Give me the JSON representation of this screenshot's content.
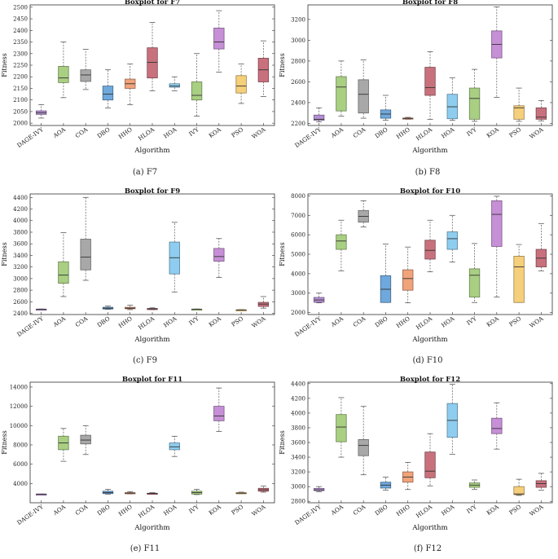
{
  "chart_data": [
    {
      "type": "boxplot",
      "title": "Boxplot for F7",
      "caption": "(a) F7",
      "xlabel": "Algorithm",
      "ylabel": "Fitness",
      "ylim": [
        1990,
        2510
      ],
      "yticks": [
        2000,
        2050,
        2100,
        2150,
        2200,
        2250,
        2300,
        2350,
        2400,
        2450,
        2500
      ],
      "series": [
        {
          "name": "DAGE-IVY",
          "color": "#b58fd4",
          "stats": [
            2022,
            2038,
            2045,
            2053,
            2080
          ]
        },
        {
          "name": "AOA",
          "color": "#a9cf82",
          "stats": [
            2110,
            2175,
            2195,
            2245,
            2350
          ]
        },
        {
          "name": "COA",
          "color": "#a8a8a8",
          "stats": [
            2145,
            2180,
            2208,
            2230,
            2318
          ]
        },
        {
          "name": "DBO",
          "color": "#6fa8dc",
          "stats": [
            2065,
            2100,
            2125,
            2160,
            2230
          ]
        },
        {
          "name": "HHO",
          "color": "#f1a37a",
          "stats": [
            2080,
            2150,
            2170,
            2190,
            2255
          ]
        },
        {
          "name": "HLOA",
          "color": "#c8717d",
          "stats": [
            2140,
            2195,
            2262,
            2325,
            2435
          ]
        },
        {
          "name": "HOA",
          "color": "#8ecdf0",
          "stats": [
            2140,
            2155,
            2160,
            2170,
            2200
          ]
        },
        {
          "name": "IVY",
          "color": "#a9cf82",
          "stats": [
            2030,
            2100,
            2120,
            2178,
            2300
          ]
        },
        {
          "name": "KOA",
          "color": "#c68fd6",
          "stats": [
            2220,
            2320,
            2350,
            2410,
            2485
          ]
        },
        {
          "name": "PSO",
          "color": "#f6cf7a",
          "stats": [
            2085,
            2130,
            2160,
            2205,
            2255
          ]
        },
        {
          "name": "WOA",
          "color": "#c8717d",
          "stats": [
            2115,
            2178,
            2230,
            2280,
            2355
          ]
        }
      ]
    },
    {
      "type": "boxplot",
      "title": "Boxplot for F8",
      "caption": "(b) F8",
      "xlabel": "Algorithm",
      "ylabel": "Fitness",
      "ylim": [
        2180,
        3340
      ],
      "yticks": [
        2200,
        2400,
        2600,
        2800,
        3000,
        3200
      ],
      "series": [
        {
          "name": "DAGE-IVY",
          "color": "#b58fd4",
          "stats": [
            2215,
            2230,
            2240,
            2280,
            2350
          ]
        },
        {
          "name": "AOA",
          "color": "#a9cf82",
          "stats": [
            2270,
            2320,
            2550,
            2650,
            2800
          ]
        },
        {
          "name": "COA",
          "color": "#a8a8a8",
          "stats": [
            2250,
            2300,
            2480,
            2620,
            2810
          ]
        },
        {
          "name": "DBO",
          "color": "#6fa8dc",
          "stats": [
            2230,
            2250,
            2290,
            2330,
            2470
          ]
        },
        {
          "name": "HHO",
          "color": "#f1a37a",
          "stats": [
            2240,
            2243,
            2248,
            2252,
            2258
          ]
        },
        {
          "name": "HLOA",
          "color": "#c8717d",
          "stats": [
            2240,
            2470,
            2545,
            2740,
            2890
          ]
        },
        {
          "name": "HOA",
          "color": "#8ecdf0",
          "stats": [
            2230,
            2245,
            2360,
            2480,
            2640
          ]
        },
        {
          "name": "IVY",
          "color": "#a9cf82",
          "stats": [
            2220,
            2240,
            2440,
            2540,
            2720
          ]
        },
        {
          "name": "KOA",
          "color": "#c68fd6",
          "stats": [
            2450,
            2830,
            2960,
            3090,
            3320
          ]
        },
        {
          "name": "PSO",
          "color": "#f6cf7a",
          "stats": [
            2220,
            2240,
            2350,
            2370,
            2540
          ]
        },
        {
          "name": "WOA",
          "color": "#c8717d",
          "stats": [
            2225,
            2240,
            2260,
            2350,
            2420
          ]
        }
      ]
    },
    {
      "type": "boxplot",
      "title": "Boxplot for F9",
      "caption": "(c) F9",
      "xlabel": "Algorithm",
      "ylabel": "Fitness",
      "ylim": [
        2380,
        4460
      ],
      "yticks": [
        2400,
        2600,
        2800,
        3000,
        3200,
        3400,
        3600,
        3800,
        4000,
        4200,
        4400
      ],
      "series": [
        {
          "name": "DAGE-IVY",
          "color": "#b58fd4",
          "stats": [
            2468,
            2470,
            2472,
            2474,
            2476
          ]
        },
        {
          "name": "AOA",
          "color": "#a9cf82",
          "stats": [
            2690,
            2920,
            3060,
            3290,
            3790
          ]
        },
        {
          "name": "COA",
          "color": "#a8a8a8",
          "stats": [
            2970,
            3150,
            3370,
            3680,
            4400
          ]
        },
        {
          "name": "DBO",
          "color": "#6fa8dc",
          "stats": [
            2470,
            2475,
            2490,
            2505,
            2525
          ]
        },
        {
          "name": "HHO",
          "color": "#f1a37a",
          "stats": [
            2465,
            2480,
            2490,
            2505,
            2540
          ]
        },
        {
          "name": "HLOA",
          "color": "#c8717d",
          "stats": [
            2465,
            2472,
            2478,
            2485,
            2495
          ]
        },
        {
          "name": "HOA",
          "color": "#8ecdf0",
          "stats": [
            2770,
            3080,
            3360,
            3630,
            3970
          ]
        },
        {
          "name": "IVY",
          "color": "#a9cf82",
          "stats": [
            2468,
            2470,
            2472,
            2474,
            2476
          ]
        },
        {
          "name": "KOA",
          "color": "#c68fd6",
          "stats": [
            3020,
            3300,
            3380,
            3520,
            3690
          ]
        },
        {
          "name": "PSO",
          "color": "#f6cf7a",
          "stats": [
            2456,
            2458,
            2460,
            2462,
            2465
          ]
        },
        {
          "name": "WOA",
          "color": "#c8717d",
          "stats": [
            2490,
            2520,
            2560,
            2590,
            2690
          ]
        }
      ]
    },
    {
      "type": "boxplot",
      "title": "Boxplot for F10",
      "caption": "(d) F10",
      "xlabel": "Algorithm",
      "ylabel": "Fitness",
      "ylim": [
        1900,
        8100
      ],
      "yticks": [
        2000,
        3000,
        4000,
        5000,
        6000,
        7000,
        8000
      ],
      "series": [
        {
          "name": "DAGE-IVY",
          "color": "#b58fd4",
          "stats": [
            2500,
            2530,
            2650,
            2780,
            3000
          ]
        },
        {
          "name": "AOA",
          "color": "#a9cf82",
          "stats": [
            4150,
            5250,
            5680,
            6000,
            6750
          ]
        },
        {
          "name": "COA",
          "color": "#a8a8a8",
          "stats": [
            6400,
            6650,
            6950,
            7250,
            7750
          ]
        },
        {
          "name": "DBO",
          "color": "#6fa8dc",
          "stats": [
            2520,
            2520,
            3200,
            3900,
            5520
          ]
        },
        {
          "name": "HHO",
          "color": "#f1a37a",
          "stats": [
            2500,
            3150,
            3750,
            4200,
            5370
          ]
        },
        {
          "name": "HLOA",
          "color": "#c8717d",
          "stats": [
            4100,
            4750,
            5200,
            5720,
            6750
          ]
        },
        {
          "name": "HOA",
          "color": "#8ecdf0",
          "stats": [
            4600,
            5250,
            5800,
            6150,
            7000
          ]
        },
        {
          "name": "IVY",
          "color": "#a9cf82",
          "stats": [
            2520,
            2800,
            3920,
            4250,
            5550
          ]
        },
        {
          "name": "KOA",
          "color": "#c68fd6",
          "stats": [
            2800,
            5400,
            7050,
            7750,
            7980
          ]
        },
        {
          "name": "PSO",
          "color": "#f6cf7a",
          "stats": [
            2520,
            2520,
            4350,
            4900,
            5500
          ]
        },
        {
          "name": "WOA",
          "color": "#c8717d",
          "stats": [
            4150,
            4350,
            4800,
            5250,
            6580
          ]
        }
      ]
    },
    {
      "type": "boxplot",
      "title": "Boxplot for F11",
      "caption": "(e) F11",
      "xlabel": "Algorithm",
      "ylabel": "Fitness",
      "ylim": [
        2000,
        14500
      ],
      "yticks": [
        4000,
        6000,
        8000,
        10000,
        12000,
        14000
      ],
      "series": [
        {
          "name": "DAGE-IVY",
          "color": "#b58fd4",
          "stats": [
            2880,
            2890,
            2900,
            2905,
            2910
          ]
        },
        {
          "name": "AOA",
          "color": "#a9cf82",
          "stats": [
            6300,
            7500,
            8200,
            8900,
            9700
          ]
        },
        {
          "name": "COA",
          "color": "#a8a8a8",
          "stats": [
            7000,
            8100,
            8500,
            9000,
            10000
          ]
        },
        {
          "name": "DBO",
          "color": "#6fa8dc",
          "stats": [
            2900,
            2950,
            3050,
            3200,
            3400
          ]
        },
        {
          "name": "HHO",
          "color": "#f1a37a",
          "stats": [
            2920,
            2960,
            3000,
            3050,
            3150
          ]
        },
        {
          "name": "HLOA",
          "color": "#c8717d",
          "stats": [
            2910,
            2940,
            2960,
            2990,
            3050
          ]
        },
        {
          "name": "HOA",
          "color": "#8ecdf0",
          "stats": [
            6800,
            7500,
            7800,
            8200,
            8900
          ]
        },
        {
          "name": "IVY",
          "color": "#a9cf82",
          "stats": [
            2850,
            2900,
            3050,
            3200,
            3400
          ]
        },
        {
          "name": "KOA",
          "color": "#c68fd6",
          "stats": [
            9400,
            10500,
            11000,
            12000,
            13900
          ]
        },
        {
          "name": "PSO",
          "color": "#f6cf7a",
          "stats": [
            2950,
            2980,
            3000,
            3050,
            3100
          ]
        },
        {
          "name": "WOA",
          "color": "#c8717d",
          "stats": [
            3100,
            3200,
            3350,
            3500,
            3750
          ]
        }
      ]
    },
    {
      "type": "boxplot",
      "title": "Boxplot for F12",
      "caption": "(f) F12",
      "xlabel": "Algorithm",
      "ylabel": "Fitness",
      "ylim": [
        2780,
        4420
      ],
      "yticks": [
        2800,
        3000,
        3200,
        3400,
        3600,
        3800,
        4000,
        4200,
        4400
      ],
      "series": [
        {
          "name": "DAGE-IVY",
          "color": "#b58fd4",
          "stats": [
            2930,
            2945,
            2955,
            2975,
            3000
          ]
        },
        {
          "name": "AOA",
          "color": "#a9cf82",
          "stats": [
            3400,
            3610,
            3810,
            3980,
            4210
          ]
        },
        {
          "name": "COA",
          "color": "#a8a8a8",
          "stats": [
            3160,
            3420,
            3560,
            3640,
            4090
          ]
        },
        {
          "name": "DBO",
          "color": "#6fa8dc",
          "stats": [
            2950,
            2980,
            3020,
            3060,
            3130
          ]
        },
        {
          "name": "HHO",
          "color": "#f1a37a",
          "stats": [
            2960,
            3060,
            3130,
            3200,
            3330
          ]
        },
        {
          "name": "HLOA",
          "color": "#c8717d",
          "stats": [
            3010,
            3120,
            3210,
            3470,
            3720
          ]
        },
        {
          "name": "HOA",
          "color": "#8ecdf0",
          "stats": [
            3440,
            3670,
            3900,
            4130,
            4390
          ]
        },
        {
          "name": "IVY",
          "color": "#a9cf82",
          "stats": [
            2960,
            2990,
            3020,
            3050,
            3090
          ]
        },
        {
          "name": "KOA",
          "color": "#c68fd6",
          "stats": [
            3510,
            3720,
            3790,
            3930,
            4140
          ]
        },
        {
          "name": "PSO",
          "color": "#f6cf7a",
          "stats": [
            2880,
            2890,
            2900,
            3000,
            3100
          ]
        },
        {
          "name": "WOA",
          "color": "#c8717d",
          "stats": [
            2950,
            2990,
            3040,
            3080,
            3180
          ]
        }
      ]
    }
  ]
}
